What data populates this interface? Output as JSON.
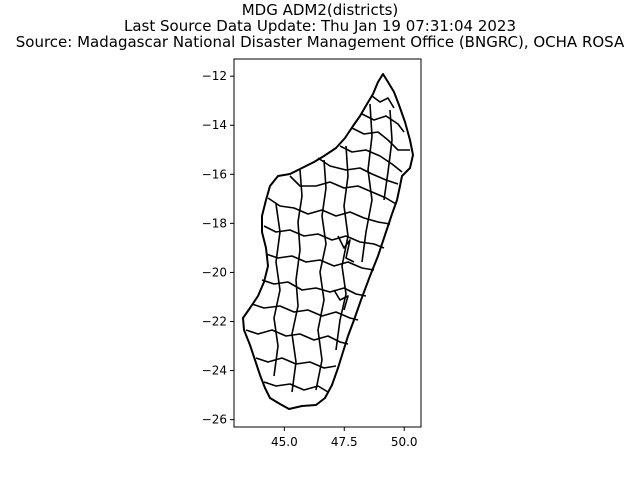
{
  "title_lines": [
    "MDG ADM2(districts)",
    "Last Source Data Update: Thu Jan 19 07:31:04 2023",
    "Source: Madagascar National Disaster Management Office (BNGRC), OCHA ROSA"
  ],
  "map": {
    "subject": "Madagascar administrative level 2 boundaries (districts)",
    "fill": "#ffffff",
    "stroke": "#000000",
    "x_range": [
      42.9,
      50.7
    ],
    "y_range": [
      -26.3,
      -11.3
    ],
    "x_ticks": [
      45.0,
      47.5,
      50.0
    ],
    "x_tick_labels": [
      "45.0",
      "47.5",
      "50.0"
    ],
    "y_ticks": [
      -12,
      -14,
      -16,
      -18,
      -20,
      -22,
      -24,
      -26
    ],
    "y_tick_labels": [
      "−12",
      "−14",
      "−16",
      "−18",
      "−20",
      "−22",
      "−24",
      "−26"
    ]
  }
}
